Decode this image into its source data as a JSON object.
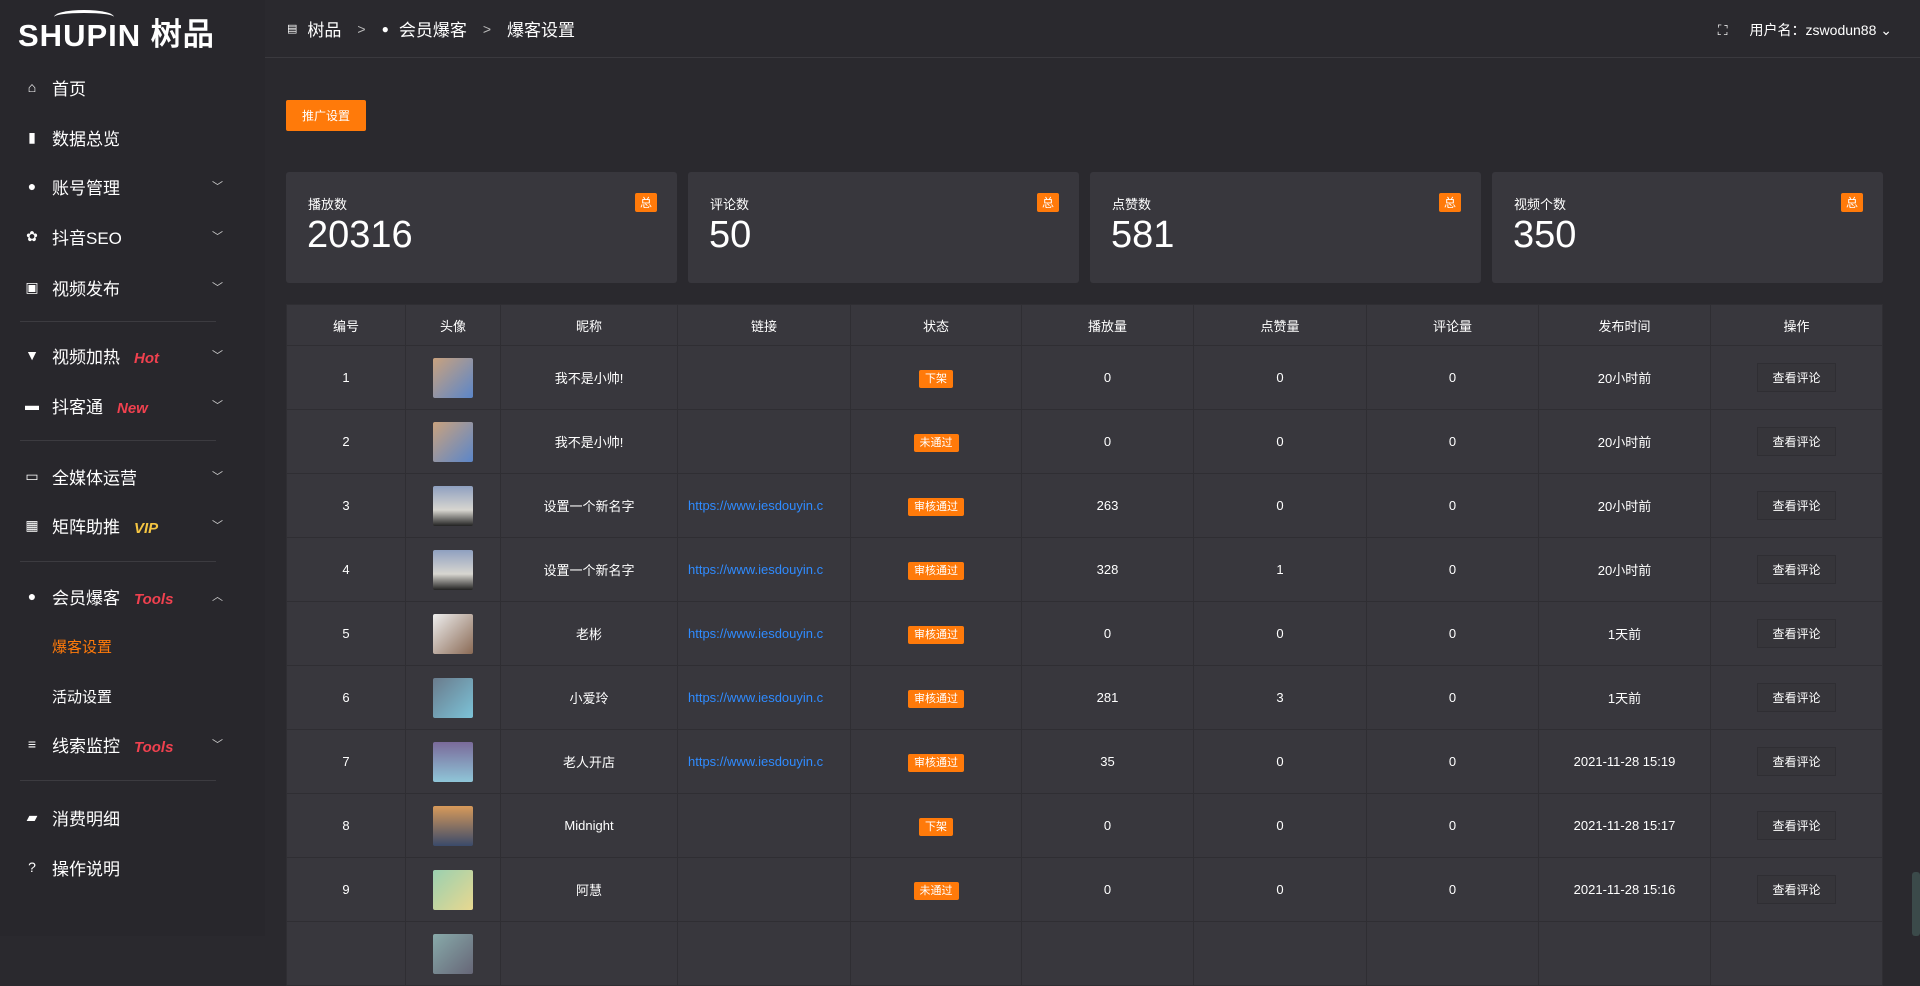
{
  "logo": {
    "text": "SHUPIN",
    "cn": "树品"
  },
  "breadcrumb": [
    {
      "label": "树品",
      "icon": "chart-icon"
    },
    {
      "label": "会员爆客",
      "icon": "user-icon"
    },
    {
      "label": "爆客设置"
    }
  ],
  "header": {
    "user": "用户名：zswodun88"
  },
  "sidebar": {
    "items": [
      {
        "label": "首页",
        "icon": "home-icon",
        "glyph": "⌂"
      },
      {
        "label": "数据总览",
        "icon": "bar-chart-icon",
        "glyph": "▮"
      },
      {
        "label": "账号管理",
        "icon": "user-icon",
        "glyph": "●",
        "chev": "﹀"
      },
      {
        "label": "抖音SEO",
        "icon": "gear-icon",
        "glyph": "✿",
        "chev": "﹀"
      },
      {
        "label": "视频发布",
        "icon": "camera-icon",
        "glyph": "▣",
        "chev": "﹀"
      },
      {
        "label": "视频加热",
        "icon": "sign-icon",
        "glyph": "▼",
        "tag": "Hot",
        "chev": "﹀"
      },
      {
        "label": "抖客通",
        "icon": "chat-icon",
        "glyph": "▬",
        "tag": "New",
        "chev": "﹀"
      },
      {
        "label": "全媒体运营",
        "icon": "monitor-icon",
        "glyph": "▭",
        "chev": "﹀"
      },
      {
        "label": "矩阵助推",
        "icon": "grid-icon",
        "glyph": "▦",
        "tag": "VIP",
        "chev": "﹀"
      },
      {
        "label": "会员爆客",
        "icon": "user-icon",
        "glyph": "●",
        "tag": "Tools",
        "chev": "︿"
      },
      {
        "label": "线索监控",
        "icon": "sliders-icon",
        "glyph": "≡",
        "tag": "Tools",
        "chev": "﹀"
      },
      {
        "label": "消费明细",
        "icon": "wallet-icon",
        "glyph": "▰"
      },
      {
        "label": "操作说明",
        "icon": "help-icon",
        "glyph": "?"
      }
    ],
    "sub": [
      {
        "label": "爆客设置",
        "active": true
      },
      {
        "label": "活动设置"
      }
    ]
  },
  "promo_button": "推广设置",
  "cards": [
    {
      "title": "播放数",
      "value": "20316",
      "badge": "总"
    },
    {
      "title": "评论数",
      "value": "50",
      "badge": "总"
    },
    {
      "title": "点赞数",
      "value": "581",
      "badge": "总"
    },
    {
      "title": "视频个数",
      "value": "350",
      "badge": "总"
    }
  ],
  "table": {
    "headers": [
      "编号",
      "头像",
      "昵称",
      "链接",
      "状态",
      "播放量",
      "点赞量",
      "评论量",
      "发布时间",
      "操作"
    ],
    "rows": [
      [
        "1",
        "",
        "我不是小帅!",
        "",
        "下架",
        "0",
        "0",
        "0",
        "20小时前",
        "查看评论"
      ],
      [
        "2",
        "",
        "我不是小帅!",
        "",
        "未通过",
        "0",
        "0",
        "0",
        "20小时前",
        "查看评论"
      ],
      [
        "3",
        "",
        "设置一个新名字",
        "https://www.iesdouyin.c",
        "审核通过",
        "263",
        "0",
        "0",
        "20小时前",
        "查看评论"
      ],
      [
        "4",
        "",
        "设置一个新名字",
        "https://www.iesdouyin.c",
        "审核通过",
        "328",
        "1",
        "0",
        "20小时前",
        "查看评论"
      ],
      [
        "5",
        "",
        "老彬",
        "https://www.iesdouyin.c",
        "审核通过",
        "0",
        "0",
        "0",
        "1天前",
        "查看评论"
      ],
      [
        "6",
        "",
        "小爱玲",
        "https://www.iesdouyin.c",
        "审核通过",
        "281",
        "3",
        "0",
        "1天前",
        "查看评论"
      ],
      [
        "7",
        "",
        "老人开店",
        "https://www.iesdouyin.c",
        "审核通过",
        "35",
        "0",
        "0",
        "2021-11-28 15:19",
        "查看评论"
      ],
      [
        "8",
        "",
        "Midnight",
        "",
        "下架",
        "0",
        "0",
        "0",
        "2021-11-28 15:17",
        "查看评论"
      ],
      [
        "9",
        "",
        "阿慧",
        "",
        "未通过",
        "0",
        "0",
        "0",
        "2021-11-28 15:16",
        "查看评论"
      ],
      [
        "",
        "",
        "",
        "",
        "",
        "",
        "",
        "",
        "",
        ""
      ]
    ]
  },
  "colors": {
    "accent": "#ff7a0a",
    "link": "#2f8bff",
    "tag": "#f0414f",
    "vip": "#f5c542"
  }
}
